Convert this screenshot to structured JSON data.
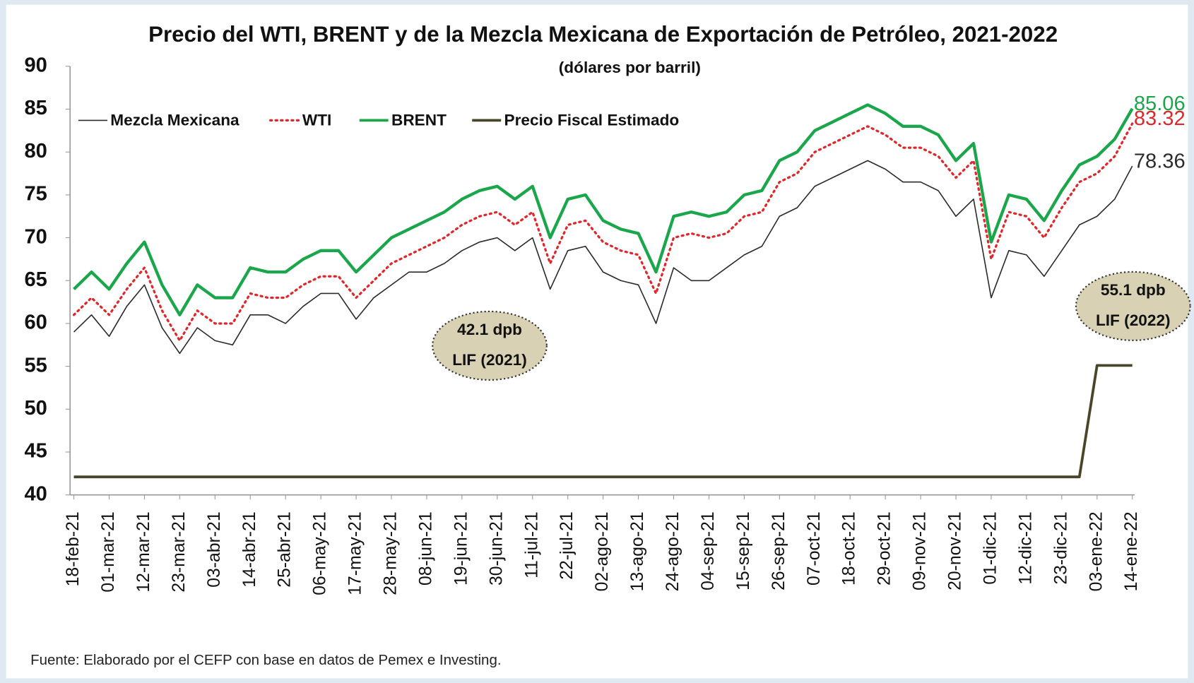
{
  "chart_data": {
    "type": "line",
    "title": "Precio del WTI, BRENT y de la Mezcla Mexicana de Exportación de Petróleo, 2021-2022",
    "subtitle": "(dólares por barril)",
    "source": "Fuente: Elaborado por el CEFP con base en datos de Pemex e Investing.",
    "categories": [
      "18-feb-21",
      null,
      "01-mar-21",
      null,
      "12-mar-21",
      null,
      "23-mar-21",
      null,
      "03-abr-21",
      null,
      "14-abr-21",
      null,
      "25-abr-21",
      null,
      "06-may-21",
      null,
      "17-may-21",
      null,
      "28-may-21",
      null,
      "08-jun-21",
      null,
      "19-jun-21",
      null,
      "30-jun-21",
      null,
      "11-jul-21",
      null,
      "22-jul-21",
      null,
      "02-ago-21",
      null,
      "13-ago-21",
      null,
      "24-ago-21",
      null,
      "04-sep-21",
      null,
      "15-sep-21",
      null,
      "26-sep-21",
      null,
      "07-oct-21",
      null,
      "18-oct-21",
      null,
      "29-oct-21",
      null,
      "09-nov-21",
      null,
      "20-nov-21",
      null,
      "01-dic-21",
      null,
      "12-dic-21",
      null,
      "23-dic-21",
      null,
      "03-ene-22",
      null,
      "14-ene-22"
    ],
    "series": [
      {
        "name": "Mezcla Mexicana",
        "color": "#2b2b2b",
        "style": "solid",
        "width": 1.5,
        "values": [
          59,
          61,
          58.5,
          62,
          64.5,
          59.5,
          56.5,
          59.5,
          58,
          57.5,
          61,
          61,
          60,
          62,
          63.5,
          63.5,
          60.5,
          63,
          64.5,
          66,
          66,
          67,
          68.5,
          69.5,
          70,
          68.5,
          70,
          64,
          68.5,
          69,
          66,
          65,
          64.5,
          60,
          66.5,
          65,
          65,
          66.5,
          68,
          69,
          72.5,
          73.5,
          76,
          77,
          78,
          79,
          78,
          76.5,
          76.5,
          75.5,
          72.5,
          74.5,
          63,
          68.5,
          68,
          65.5,
          68.5,
          71.5,
          72.5,
          74.5,
          78.36
        ],
        "end_label": true
      },
      {
        "name": "WTI",
        "color": "#e0262b",
        "style": "dotted",
        "width": 3,
        "values": [
          61,
          63,
          61,
          64,
          66.5,
          61.5,
          58,
          61.5,
          60,
          60,
          63.5,
          63,
          63,
          64.5,
          65.5,
          65.5,
          63,
          65,
          67,
          68,
          69,
          70,
          71.5,
          72.5,
          73,
          71.5,
          73,
          67,
          71.5,
          72,
          69.5,
          68.5,
          68,
          63.5,
          70,
          70.5,
          70,
          70.5,
          72.5,
          73,
          76.5,
          77.5,
          80,
          81,
          82,
          83,
          82,
          80.5,
          80.5,
          79.5,
          77,
          79,
          67.5,
          73,
          72.5,
          70,
          73.5,
          76.5,
          77.5,
          79.5,
          83.32
        ],
        "end_label": true
      },
      {
        "name": "BRENT",
        "color": "#1aa64a",
        "style": "solid",
        "width": 4,
        "values": [
          64,
          66,
          64,
          67,
          69.5,
          64.5,
          61,
          64.5,
          63,
          63,
          66.5,
          66,
          66,
          67.5,
          68.5,
          68.5,
          66,
          68,
          70,
          71,
          72,
          73,
          74.5,
          75.5,
          76,
          74.5,
          76,
          70,
          74.5,
          75,
          72,
          71,
          70.5,
          66,
          72.5,
          73,
          72.5,
          73,
          75,
          75.5,
          79,
          80,
          82.5,
          83.5,
          84.5,
          85.5,
          84.5,
          83,
          83,
          82,
          79,
          81,
          69.5,
          75,
          74.5,
          72,
          75.5,
          78.5,
          79.5,
          81.5,
          85.06
        ],
        "end_label": true
      },
      {
        "name": "Precio Fiscal Estimado",
        "color": "#4a4526",
        "style": "solid",
        "width": 3.5,
        "values": [
          42.1,
          42.1,
          42.1,
          42.1,
          42.1,
          42.1,
          42.1,
          42.1,
          42.1,
          42.1,
          42.1,
          42.1,
          42.1,
          42.1,
          42.1,
          42.1,
          42.1,
          42.1,
          42.1,
          42.1,
          42.1,
          42.1,
          42.1,
          42.1,
          42.1,
          42.1,
          42.1,
          42.1,
          42.1,
          42.1,
          42.1,
          42.1,
          42.1,
          42.1,
          42.1,
          42.1,
          42.1,
          42.1,
          42.1,
          42.1,
          42.1,
          42.1,
          42.1,
          42.1,
          42.1,
          42.1,
          42.1,
          42.1,
          42.1,
          42.1,
          42.1,
          42.1,
          42.1,
          42.1,
          42.1,
          42.1,
          42.1,
          42.1,
          55.1,
          55.1,
          55.1
        ],
        "end_label": false
      }
    ],
    "annotations": [
      [
        "42.1 dpb",
        "LIF (2021)"
      ],
      [
        "55.1 dpb",
        "LIF (2022)"
      ]
    ],
    "ylim": [
      40,
      90
    ],
    "yticks": [
      40,
      45,
      50,
      55,
      60,
      65,
      70,
      75,
      80,
      85,
      90
    ],
    "legend": "top-left"
  }
}
